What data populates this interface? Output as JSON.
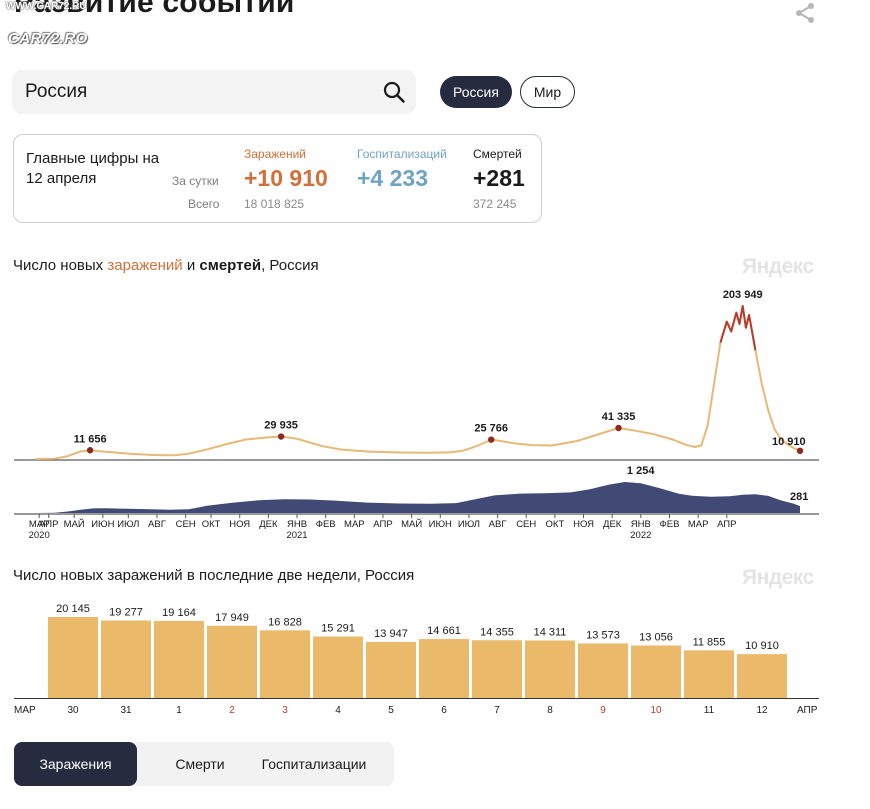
{
  "header": {
    "title": "Развитие событий",
    "watermark_url": "WWW.CAR72.RU",
    "watermark_logo": "CAR72.RO"
  },
  "search": {
    "value": "Россия"
  },
  "region_chips": [
    {
      "label": "Россия",
      "active": true
    },
    {
      "label": "Мир",
      "active": false
    }
  ],
  "summary": {
    "heading": "Главные цифры на 12 апреля",
    "per_day_label": "За сутки",
    "total_label": "Всего",
    "stats": [
      {
        "name": "Заражений",
        "per_day": "+10 910",
        "total": "18 018 825",
        "color": "#d2703a"
      },
      {
        "name": "Госпитализаций",
        "per_day": "+4 233",
        "total": "",
        "color": "#6fa3c4"
      },
      {
        "name": "Смертей",
        "per_day": "+281",
        "total": "372 245",
        "color": "#1b1b1b"
      }
    ]
  },
  "chart1": {
    "title_pre": "Число новых ",
    "title_infections": "заражений",
    "title_mid": " и ",
    "title_deaths": "смертей",
    "title_post": ", Россия",
    "brand": "Яндекс"
  },
  "chart2": {
    "title": "Число новых заражений в последние две недели, Россия",
    "brand": "Яндекс",
    "edge_left": "МАР",
    "edge_right": "АПР"
  },
  "tabs": [
    {
      "label": "Заражения",
      "active": true
    },
    {
      "label": "Смерти",
      "active": false
    },
    {
      "label": "Госпитализации",
      "active": false
    }
  ],
  "chart_data": [
    {
      "type": "line",
      "series": [
        {
          "name": "заражений",
          "color": "#e8b877",
          "peak_color": "#b93a2c",
          "points": [
            [
              0,
              0
            ],
            [
              3,
              350
            ],
            [
              5,
              3800
            ],
            [
              7,
              10000
            ],
            [
              8.5,
              11656
            ],
            [
              10,
              10200
            ],
            [
              12,
              9000
            ],
            [
              15,
              6800
            ],
            [
              18,
              5500
            ],
            [
              20,
              5000
            ],
            [
              22,
              5200
            ],
            [
              24,
              7000
            ],
            [
              27,
              13000
            ],
            [
              30,
              20000
            ],
            [
              33,
              26000
            ],
            [
              36,
              28500
            ],
            [
              38.5,
              29935
            ],
            [
              41,
              27000
            ],
            [
              43,
              22000
            ],
            [
              45,
              17000
            ],
            [
              48,
              12500
            ],
            [
              52,
              10000
            ],
            [
              57,
              8700
            ],
            [
              62,
              8200
            ],
            [
              65,
              8800
            ],
            [
              67,
              11000
            ],
            [
              68.5,
              15000
            ],
            [
              70,
              20000
            ],
            [
              71.5,
              25766
            ],
            [
              73,
              24000
            ],
            [
              75,
              21000
            ],
            [
              78,
              18500
            ],
            [
              81,
              18000
            ],
            [
              85,
              24000
            ],
            [
              88,
              32000
            ],
            [
              91.5,
              41335
            ],
            [
              94,
              38000
            ],
            [
              97,
              33000
            ],
            [
              100,
              26000
            ],
            [
              102,
              19000
            ],
            [
              103.5,
              16000
            ],
            [
              104.5,
              18000
            ],
            [
              105.5,
              45000
            ],
            [
              106.5,
              100000
            ],
            [
              107.5,
              155000
            ],
            [
              108.5,
              183000
            ],
            [
              109.2,
              170000
            ],
            [
              110,
              195000
            ],
            [
              110.5,
              180000
            ],
            [
              111,
              203949
            ],
            [
              111.5,
              175000
            ],
            [
              112,
              192000
            ],
            [
              113,
              145000
            ],
            [
              114,
              100000
            ],
            [
              115,
              65000
            ],
            [
              116,
              40000
            ],
            [
              117,
              26000
            ],
            [
              118,
              20000
            ],
            [
              119,
              14500
            ],
            [
              120,
              10910
            ]
          ],
          "labels": [
            {
              "x": 8.5,
              "value": "11 656"
            },
            {
              "x": 38.5,
              "value": "29 935"
            },
            {
              "x": 71.5,
              "value": "25 766"
            },
            {
              "x": 91.5,
              "value": "41 335"
            },
            {
              "x": 111,
              "value": "203 949"
            },
            {
              "x": 120,
              "value": "10 910"
            }
          ]
        },
        {
          "name": "смертей",
          "color": "#404a74",
          "points": [
            [
              0,
              0
            ],
            [
              3,
              10
            ],
            [
              5,
              60
            ],
            [
              7,
              130
            ],
            [
              9,
              185
            ],
            [
              11,
              190
            ],
            [
              14,
              175
            ],
            [
              18,
              150
            ],
            [
              21,
              135
            ],
            [
              24,
              150
            ],
            [
              27,
              300
            ],
            [
              31,
              420
            ],
            [
              35,
              515
            ],
            [
              39,
              560
            ],
            [
              43,
              545
            ],
            [
              47,
              500
            ],
            [
              52,
              420
            ],
            [
              57,
              385
            ],
            [
              62,
              375
            ],
            [
              66,
              400
            ],
            [
              69,
              560
            ],
            [
              72,
              710
            ],
            [
              76,
              785
            ],
            [
              80,
              800
            ],
            [
              84,
              835
            ],
            [
              87,
              960
            ],
            [
              90,
              1150
            ],
            [
              92.5,
              1254
            ],
            [
              95,
              1200
            ],
            [
              98,
              1000
            ],
            [
              101,
              780
            ],
            [
              103,
              700
            ],
            [
              106,
              660
            ],
            [
              109,
              680
            ],
            [
              111,
              740
            ],
            [
              113,
              760
            ],
            [
              115,
              690
            ],
            [
              117,
              510
            ],
            [
              119,
              380
            ],
            [
              120,
              281
            ]
          ],
          "labels": [
            {
              "x": 92.5,
              "value": "1 254"
            },
            {
              "x": 120,
              "value": "281"
            }
          ]
        }
      ],
      "x_ticks": [
        {
          "month": "МАР",
          "year": "2020",
          "x": 0.5
        },
        {
          "month": "АПР",
          "x": 2
        },
        {
          "month": "МАЙ",
          "x": 6
        },
        {
          "month": "ИЮН",
          "x": 10.5
        },
        {
          "month": "ИЮЛ",
          "x": 14.5
        },
        {
          "month": "АВГ",
          "x": 19
        },
        {
          "month": "СЕН",
          "x": 23.5
        },
        {
          "month": "ОКТ",
          "x": 27.5
        },
        {
          "month": "НОЯ",
          "x": 32
        },
        {
          "month": "ДЕК",
          "x": 36.5
        },
        {
          "month": "ЯНВ",
          "year": "2021",
          "x": 41
        },
        {
          "month": "ФЕВ",
          "x": 45.5
        },
        {
          "month": "МАР",
          "x": 50
        },
        {
          "month": "АПР",
          "x": 54.5
        },
        {
          "month": "МАЙ",
          "x": 59
        },
        {
          "month": "ИЮН",
          "x": 63.5
        },
        {
          "month": "ИЮЛ",
          "x": 68
        },
        {
          "month": "АВГ",
          "x": 72.5
        },
        {
          "month": "СЕН",
          "x": 77
        },
        {
          "month": "ОКТ",
          "x": 81.5
        },
        {
          "month": "НОЯ",
          "x": 86
        },
        {
          "month": "ДЕК",
          "x": 90.5
        },
        {
          "month": "ЯНВ",
          "year": "2022",
          "x": 95
        },
        {
          "month": "ФЕВ",
          "x": 99.5
        },
        {
          "month": "МАР",
          "x": 104
        },
        {
          "month": "АПР",
          "x": 108.5
        }
      ]
    },
    {
      "type": "bar",
      "color": "#ebb96a",
      "categories": [
        "30",
        "31",
        "1",
        "2",
        "3",
        "4",
        "5",
        "6",
        "7",
        "8",
        "9",
        "10",
        "11",
        "12"
      ],
      "weekend": [
        false,
        false,
        false,
        true,
        true,
        false,
        false,
        false,
        false,
        false,
        true,
        true,
        false,
        false
      ],
      "weekend_color": "#b93a2c",
      "values": [
        20145,
        19277,
        19164,
        17949,
        16828,
        15291,
        13947,
        14661,
        14355,
        14311,
        13573,
        13056,
        11855,
        10910
      ],
      "value_labels": [
        "20 145",
        "19 277",
        "19 164",
        "17 949",
        "16 828",
        "15 291",
        "13 947",
        "14 661",
        "14 355",
        "14 311",
        "13 573",
        "13 056",
        "11 855",
        "10 910"
      ]
    }
  ]
}
